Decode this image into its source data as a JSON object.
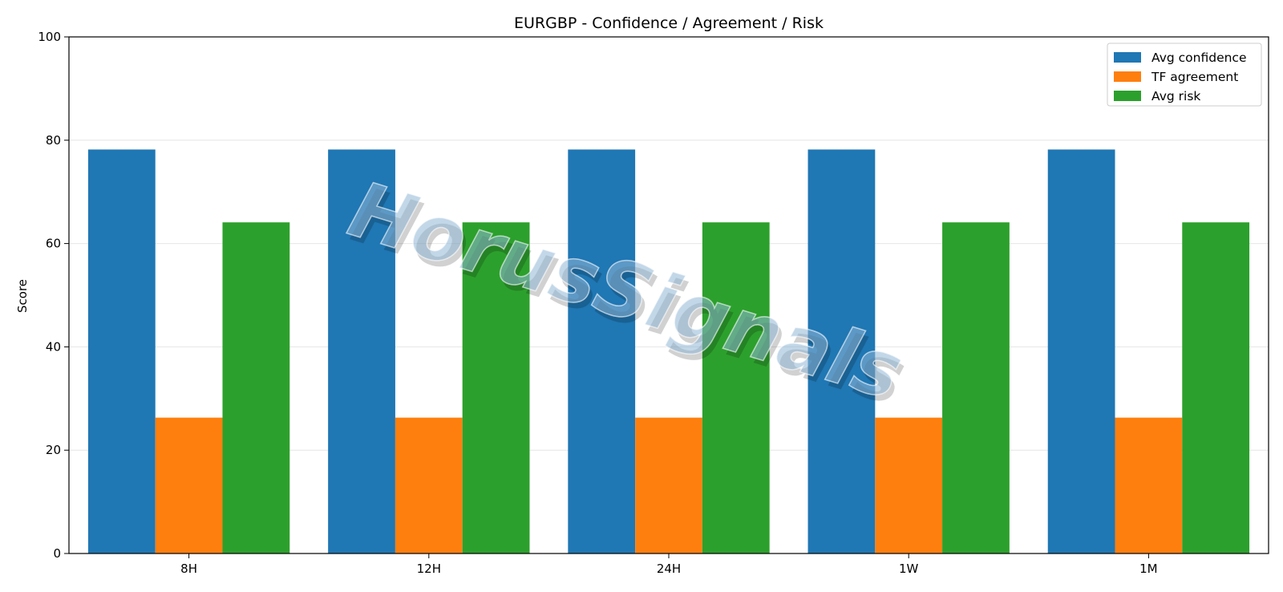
{
  "chart_data": {
    "type": "bar",
    "title": "EURGBP - Confidence / Agreement / Risk",
    "xlabel": "",
    "ylabel": "Score",
    "ylim": [
      0,
      100
    ],
    "yticks": [
      0,
      20,
      40,
      60,
      80,
      100
    ],
    "grid": "horizontal",
    "legend_position": "top-right",
    "categories": [
      "8H",
      "12H",
      "24H",
      "1W",
      "1M"
    ],
    "series": [
      {
        "name": "Avg confidence",
        "color": "#1f77b4",
        "values": [
          78.2,
          78.2,
          78.2,
          78.2,
          78.2
        ]
      },
      {
        "name": "TF agreement",
        "color": "#ff7f0e",
        "values": [
          26.3,
          26.3,
          26.3,
          26.3,
          26.3
        ]
      },
      {
        "name": "Avg risk",
        "color": "#2ca02c",
        "values": [
          64.1,
          64.1,
          64.1,
          64.1,
          64.1
        ]
      }
    ],
    "watermark": "HorusSignals"
  }
}
